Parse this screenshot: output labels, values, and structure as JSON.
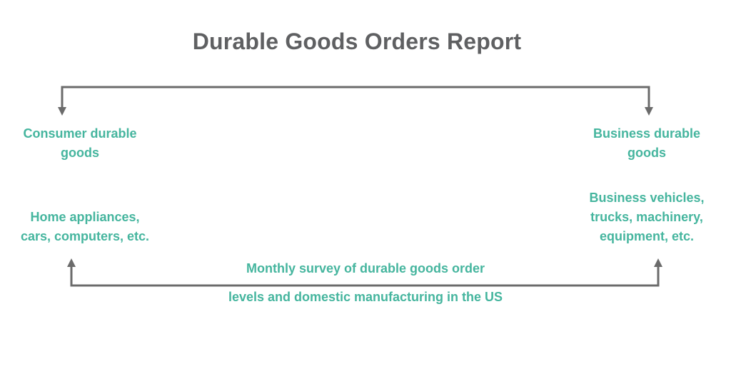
{
  "title": "Durable Goods Orders Report",
  "consumer": {
    "heading_line1": "Consumer durable",
    "heading_line2": "goods",
    "examples_line1": "Home appliances,",
    "examples_line2": "cars, computers, etc."
  },
  "business": {
    "heading_line1": "Business durable",
    "heading_line2": "goods",
    "examples_line1": "Business vehicles,",
    "examples_line2": "trucks, machinery,",
    "examples_line3": "equipment, etc."
  },
  "caption": {
    "line1": "Monthly survey of durable goods order",
    "line2": "levels and domestic manufacturing in the US"
  },
  "colors": {
    "title": "#5f6062",
    "accent": "#45b59e",
    "connector": "#6b6b6b"
  }
}
